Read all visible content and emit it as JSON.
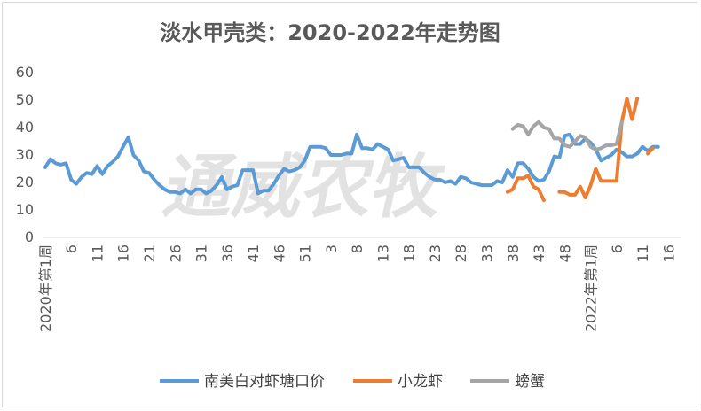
{
  "chart_data": {
    "type": "line",
    "title": "淡水甲壳类：2020-2022年走势图",
    "watermark": "通威农牧",
    "xlabel": "",
    "ylabel": "",
    "ylim": [
      0,
      60
    ],
    "yticks": [
      0,
      10,
      20,
      30,
      40,
      50,
      60
    ],
    "x_tick_labels": [
      {
        "i": 0,
        "label": "2020年第1周"
      },
      {
        "i": 5,
        "label": "6"
      },
      {
        "i": 10,
        "label": "11"
      },
      {
        "i": 15,
        "label": "16"
      },
      {
        "i": 20,
        "label": "21"
      },
      {
        "i": 25,
        "label": "26"
      },
      {
        "i": 30,
        "label": "31"
      },
      {
        "i": 35,
        "label": "36"
      },
      {
        "i": 40,
        "label": "41"
      },
      {
        "i": 45,
        "label": "46"
      },
      {
        "i": 50,
        "label": "51"
      },
      {
        "i": 55,
        "label": "3"
      },
      {
        "i": 60,
        "label": "8"
      },
      {
        "i": 65,
        "label": "13"
      },
      {
        "i": 70,
        "label": "18"
      },
      {
        "i": 75,
        "label": "23"
      },
      {
        "i": 80,
        "label": "28"
      },
      {
        "i": 85,
        "label": "33"
      },
      {
        "i": 90,
        "label": "38"
      },
      {
        "i": 95,
        "label": "43"
      },
      {
        "i": 100,
        "label": "48"
      },
      {
        "i": 105,
        "label": "2022年第1周"
      },
      {
        "i": 110,
        "label": "6"
      },
      {
        "i": 115,
        "label": "11"
      },
      {
        "i": 120,
        "label": "16"
      }
    ],
    "x_count": 123,
    "legend_position": "bottom",
    "grid": false,
    "series": [
      {
        "name": "南美白对虾塘口价",
        "color": "#5B9BD5",
        "start": 0,
        "values": [
          25.5,
          28.5,
          27,
          26.5,
          27,
          21,
          19.5,
          22,
          23.5,
          23,
          26,
          23,
          26,
          27.5,
          29.5,
          33,
          36.5,
          30,
          28,
          24,
          23.5,
          21,
          19,
          17.5,
          16.5,
          16.5,
          16,
          17.5,
          16,
          17.5,
          17.5,
          16,
          17,
          19,
          22,
          17.5,
          18.5,
          19,
          24.5,
          24.5,
          24.5,
          16,
          17,
          17,
          19.5,
          22.5,
          25,
          24,
          24.5,
          25.5,
          28,
          33,
          33,
          33,
          32.5,
          30,
          30,
          30,
          30.5,
          30.5,
          37.5,
          32.5,
          32.5,
          32,
          34,
          33,
          32,
          28,
          28.5,
          29,
          25.5,
          25.5,
          25.5,
          23.5,
          22,
          21,
          21,
          20,
          20.5,
          19.5,
          22,
          21.5,
          20,
          19.5,
          19,
          19,
          19,
          20.5,
          20,
          24.5,
          22,
          27,
          27,
          25,
          22,
          20.5,
          21,
          24,
          29.5,
          29,
          37,
          37.5,
          34,
          34,
          36,
          34.5,
          32,
          28,
          29,
          30,
          32,
          31,
          29.5,
          29.5,
          30.5,
          33,
          31.5,
          33,
          33
        ]
      },
      {
        "name": "小龙虾",
        "color": "#ED7D31",
        "start": 89,
        "values": [
          16.5,
          17.5,
          21.5,
          21.5,
          22.5,
          18.5,
          17.5,
          13.5,
          null,
          null,
          16.5,
          16.5,
          15.5,
          15.5,
          18.5,
          14.5,
          19,
          25,
          20.5,
          20.5,
          20.5,
          20.5,
          42,
          50.5,
          43,
          50.5,
          null,
          30.5,
          32.5
        ]
      },
      {
        "name": "螃蟹",
        "color": "#A5A5A5",
        "start": 90,
        "values": [
          39.5,
          41,
          40.5,
          37.5,
          40.5,
          42,
          40,
          39.5,
          36,
          36,
          33.5,
          33,
          35,
          37,
          36.5,
          33,
          32,
          32.5,
          33.5,
          33.5,
          34,
          42
        ]
      }
    ]
  }
}
